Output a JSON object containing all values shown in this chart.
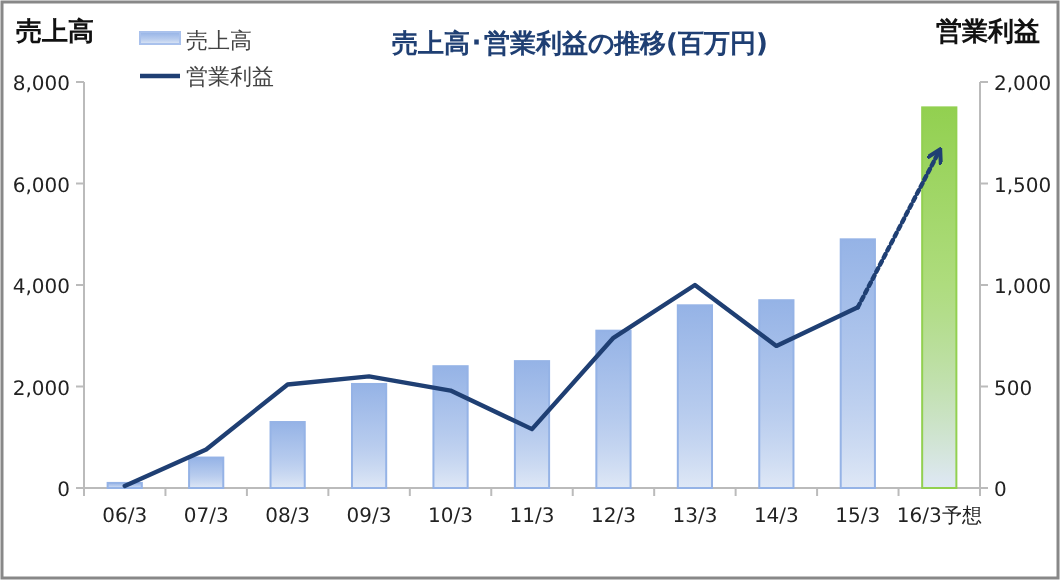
{
  "chart_data": {
    "type": "bar",
    "title": "売上高･営業利益の推移(百万円)",
    "ylabel": "売上高",
    "y2label": "営業利益",
    "categories": [
      "06/3",
      "07/3",
      "08/3",
      "09/3",
      "10/3",
      "11/3",
      "12/3",
      "13/3",
      "14/3",
      "15/3",
      "16/3予想"
    ],
    "series": [
      {
        "name": "売上高",
        "color": "#95b3e6",
        "colors": [
          "#95b3e6",
          "#95b3e6",
          "#95b3e6",
          "#95b3e6",
          "#95b3e6",
          "#95b3e6",
          "#95b3e6",
          "#95b3e6",
          "#95b3e6",
          "#95b3e6",
          "#92d050"
        ],
        "values": [
          100,
          600,
          1300,
          2050,
          2400,
          2500,
          3100,
          3600,
          3700,
          4900,
          7500
        ]
      },
      {
        "name": "営業利益",
        "type": "line",
        "axis": "y2",
        "color": "#1f3f73",
        "line_style": "solid",
        "values": [
          10,
          190,
          510,
          550,
          480,
          290,
          740,
          1000,
          700,
          890,
          null
        ]
      },
      {
        "type": "line",
        "axis": "y2",
        "color": "#1f3f73",
        "line_style": "dotted",
        "values": [
          null,
          null,
          null,
          null,
          null,
          null,
          null,
          null,
          null,
          890,
          1660
        ]
      }
    ],
    "ylim": [
      0,
      8000
    ],
    "yticks": [
      0,
      {
        "value": 2000,
        "label": "2,000"
      },
      {
        "value": 4000,
        "label": "4,000"
      },
      {
        "value": 6000,
        "label": "6,000"
      },
      {
        "value": 8000,
        "label": "8,000"
      }
    ],
    "y2lim": [
      0,
      2000
    ],
    "y2ticks": [
      0,
      500,
      {
        "value": 1000,
        "label": "1,000"
      },
      {
        "value": 1500,
        "label": "1,500"
      },
      {
        "value": 2000,
        "label": "2,000"
      }
    ],
    "legend": "top left",
    "grid": false,
    "marker": "none"
  }
}
